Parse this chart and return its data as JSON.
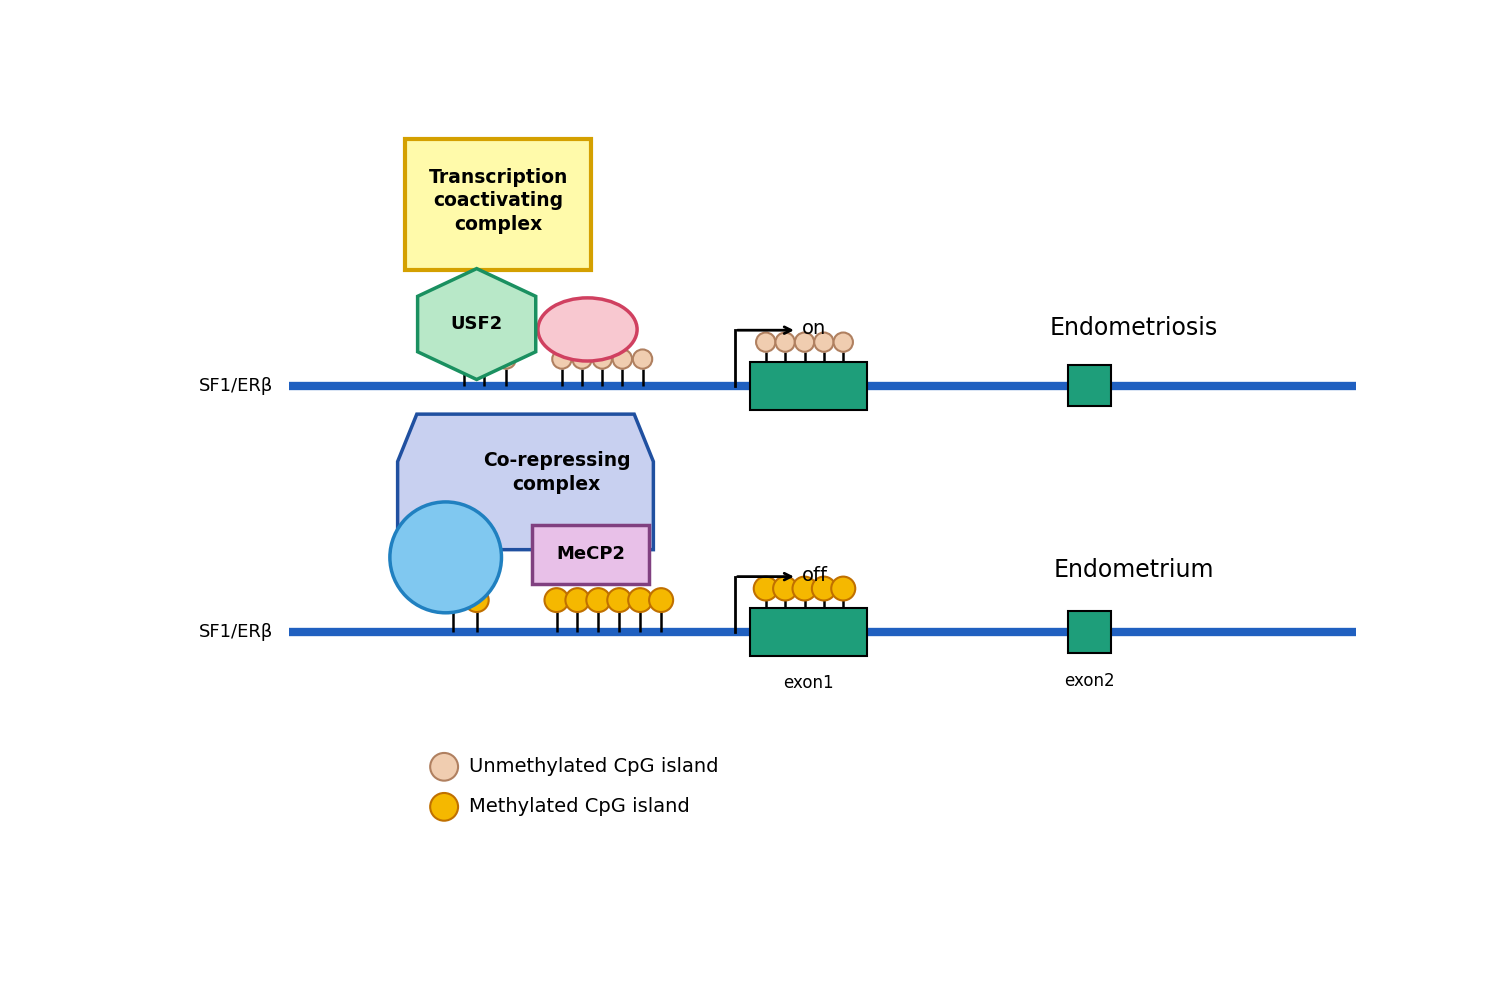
{
  "bg_color": "#ffffff",
  "line_color": "#2060c0",
  "teal_fill": "#1e9e7a",
  "teal_edge": "#000000",
  "unmeth_fill": "#f0cdb0",
  "unmeth_edge": "#b08060",
  "meth_fill": "#f5b800",
  "meth_edge": "#c07000",
  "usf2_fill": "#b8e8c8",
  "usf2_edge": "#1a9060",
  "pink_fill": "#f8c8d0",
  "pink_edge": "#d04060",
  "yellow_fill": "#fffaaa",
  "yellow_edge": "#d4a000",
  "blue_hex_fill": "#c8d0f0",
  "blue_hex_edge": "#2050a0",
  "cyan_fill": "#80c8f0",
  "cyan_edge": "#2080c0",
  "mecp2_fill": "#e8c0e8",
  "mecp2_edge": "#804080",
  "black": "#000000",
  "text_color": "#000000",
  "sf1_erb": "SF1/ERβ",
  "on_label": "on",
  "off_label": "off",
  "exon1": "exon1",
  "exon2": "exon2",
  "usf2": "USF2",
  "mecp2": "MeCP2",
  "trans_label": "Transcription\ncoactivating\ncomplex",
  "corep_label": "Co-repressing\ncomplex",
  "endo_label": "Endometriosis",
  "endm_label": "Endometrium",
  "unmeth_legend": "Unmethylated CpG island",
  "meth_legend": "Methylated CpG island"
}
